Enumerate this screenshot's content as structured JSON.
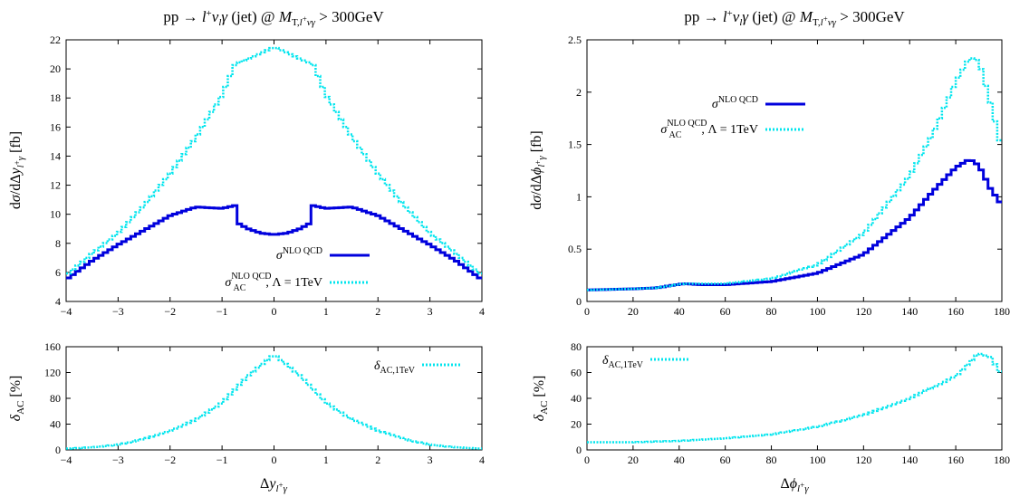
{
  "colors": {
    "nlo": "#0000dd",
    "ac": "#00e5ee",
    "axis": "#000000"
  },
  "chart_data": [
    {
      "id": "left-main",
      "type": "line",
      "title": "pp → l⁺ν_lγ (jet) @ M_T,l⁺νγ > 300GeV",
      "ylabel": "dσ/dΔy_l⁺γ [fb]",
      "xlim": [
        -4,
        4
      ],
      "ylim": [
        4,
        22
      ],
      "xticks": [
        -4,
        -3,
        -2,
        -1,
        0,
        1,
        2,
        3,
        4
      ],
      "yticks": [
        4,
        6,
        8,
        10,
        12,
        14,
        16,
        18,
        20,
        22
      ],
      "legend": "center-bottom",
      "x": [
        -4.0,
        -3.5,
        -3.0,
        -2.5,
        -2.0,
        -1.5,
        -1.0,
        -0.75,
        -0.7,
        -0.5,
        -0.25,
        0.0,
        0.25,
        0.5,
        0.7,
        0.75,
        1.0,
        1.5,
        2.0,
        2.5,
        3.0,
        3.5,
        4.0
      ],
      "series": [
        {
          "name": "σ^NLO QCD",
          "values": [
            5.5,
            6.8,
            7.9,
            8.9,
            9.9,
            10.5,
            10.4,
            10.6,
            9.4,
            9.0,
            8.7,
            8.6,
            8.7,
            9.0,
            9.4,
            10.6,
            10.4,
            10.5,
            9.9,
            8.9,
            7.9,
            6.8,
            5.5
          ]
        },
        {
          "name": "σ_AC^NLO QCD, Λ = 1TeV",
          "values": [
            5.8,
            7.3,
            8.7,
            10.6,
            12.8,
            15.3,
            18.2,
            20.3,
            20.4,
            20.7,
            21.1,
            21.5,
            21.1,
            20.7,
            20.4,
            20.3,
            18.2,
            15.3,
            12.8,
            10.6,
            8.7,
            7.3,
            5.8
          ]
        }
      ]
    },
    {
      "id": "right-main",
      "type": "line",
      "title": "pp → l⁺ν_lγ (jet) @ M_T,l⁺νγ > 300GeV",
      "ylabel": "dσ/dΔφ_l⁺γ [fb]",
      "xlim": [
        0,
        180
      ],
      "ylim": [
        0,
        2.5
      ],
      "xticks": [
        0,
        20,
        40,
        60,
        80,
        100,
        120,
        140,
        160,
        180
      ],
      "yticks": [
        0,
        0.5,
        1,
        1.5,
        2,
        2.5
      ],
      "legend": "top-right",
      "x": [
        0,
        20,
        30,
        42,
        50,
        60,
        80,
        100,
        120,
        140,
        150,
        160,
        166,
        170,
        175,
        180
      ],
      "series": [
        {
          "name": "σ^NLO QCD",
          "values": [
            0.11,
            0.12,
            0.13,
            0.17,
            0.16,
            0.16,
            0.19,
            0.27,
            0.45,
            0.8,
            1.05,
            1.28,
            1.36,
            1.3,
            1.08,
            0.92
          ]
        },
        {
          "name": "σ_AC^NLO QCD, Λ = 1TeV",
          "values": [
            0.11,
            0.12,
            0.13,
            0.17,
            0.17,
            0.17,
            0.22,
            0.35,
            0.65,
            1.2,
            1.6,
            2.1,
            2.33,
            2.3,
            1.9,
            1.45
          ]
        }
      ]
    },
    {
      "id": "left-ratio",
      "type": "line",
      "title": "",
      "xlabel": "Δy_l⁺γ",
      "ylabel": "δ_AC [%]",
      "xlim": [
        -4,
        4
      ],
      "ylim": [
        0,
        160
      ],
      "xticks": [
        -4,
        -3,
        -2,
        -1,
        0,
        1,
        2,
        3,
        4
      ],
      "yticks": [
        0,
        40,
        80,
        120,
        160
      ],
      "legend": "top-right",
      "x": [
        -4.0,
        -3.5,
        -3.0,
        -2.5,
        -2.0,
        -1.5,
        -1.0,
        -0.5,
        0.0,
        0.5,
        1.0,
        1.5,
        2.0,
        2.5,
        3.0,
        3.5,
        4.0
      ],
      "series": [
        {
          "name": "δ_AC,1TeV",
          "values": [
            2,
            4,
            8,
            17,
            30,
            47,
            73,
            115,
            148,
            115,
            73,
            47,
            30,
            17,
            8,
            4,
            2
          ]
        }
      ]
    },
    {
      "id": "right-ratio",
      "type": "line",
      "title": "",
      "xlabel": "Δφ_l⁺γ",
      "ylabel": "δ_AC [%]",
      "xlim": [
        0,
        180
      ],
      "ylim": [
        0,
        80
      ],
      "xticks": [
        0,
        20,
        40,
        60,
        80,
        100,
        120,
        140,
        160,
        180
      ],
      "yticks": [
        0,
        20,
        40,
        60,
        80
      ],
      "legend": "top-left",
      "x": [
        0,
        20,
        40,
        60,
        80,
        100,
        120,
        140,
        160,
        170,
        175,
        180
      ],
      "series": [
        {
          "name": "δ_AC,1TeV",
          "values": [
            6,
            6,
            7,
            9,
            12,
            18,
            27,
            40,
            57,
            75,
            72,
            58
          ]
        }
      ]
    }
  ]
}
